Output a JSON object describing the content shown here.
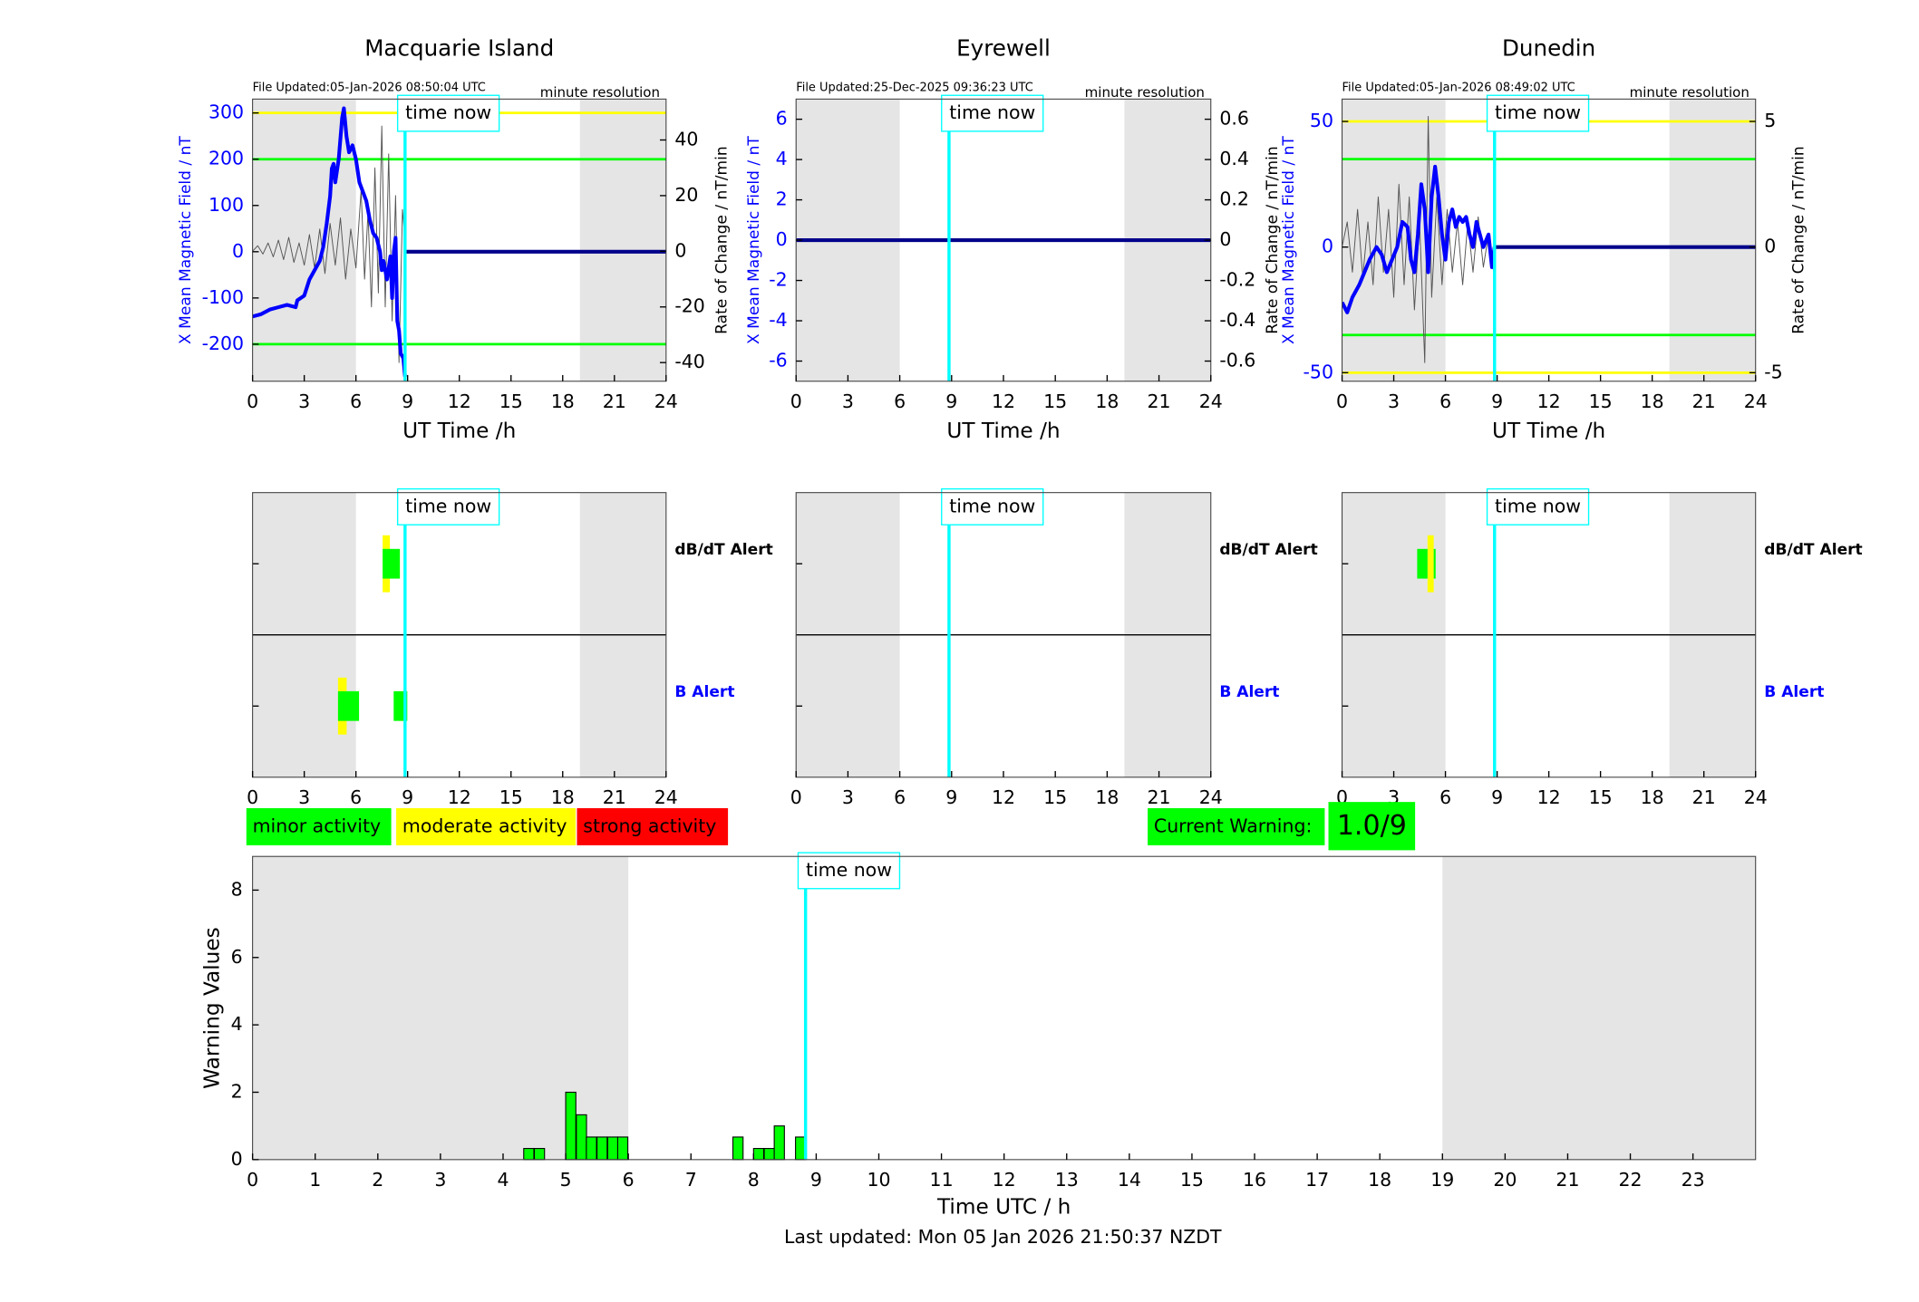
{
  "chart_data": [
    {
      "type": "line",
      "title": "Macquarie Island",
      "file_updated": "File Updated:05-Jan-2026 08:50:04 UTC",
      "resolution": "minute resolution",
      "xlabel": "UT Time /h",
      "ylabel": "X Mean Magnetic Field / nT",
      "y2label": "Rate of Change / nT/min",
      "ycolor": "#0000ff",
      "xlim": [
        0,
        24
      ],
      "xticks": [
        0,
        3,
        6,
        9,
        12,
        15,
        18,
        21,
        24
      ],
      "ylim": [
        -280,
        330
      ],
      "yticks": [
        -200,
        -100,
        0,
        100,
        200,
        300
      ],
      "y2lim": [
        -46.7,
        54.7
      ],
      "y2ticks": [
        -40,
        -20,
        0,
        20,
        40
      ],
      "night": [
        [
          0,
          6
        ],
        [
          19,
          24
        ]
      ],
      "time_now": 8.85,
      "time_now_label": "time now",
      "thresholds": [
        {
          "value": 300,
          "color": "#ffff00"
        },
        {
          "value": 200,
          "color": "#00ff00"
        },
        {
          "value": -200,
          "color": "#00ff00"
        }
      ],
      "series": [
        {
          "color": "#555555",
          "axis": "y2",
          "x": [
            0,
            0.3,
            0.6,
            0.9,
            1.2,
            1.5,
            1.8,
            2.1,
            2.4,
            2.7,
            3.0,
            3.3,
            3.6,
            3.9,
            4.2,
            4.5,
            4.8,
            5.1,
            5.4,
            5.7,
            6.0,
            6.3,
            6.5,
            6.7,
            6.9,
            7.1,
            7.3,
            7.5,
            7.7,
            7.9,
            8.1,
            8.3,
            8.5,
            8.7,
            8.9
          ],
          "values": [
            0,
            2,
            -1,
            3,
            -2,
            4,
            -3,
            5,
            -4,
            3,
            -5,
            6,
            -6,
            8,
            -8,
            10,
            -5,
            12,
            -10,
            8,
            -6,
            22,
            -10,
            14,
            -20,
            30,
            -15,
            45,
            -20,
            35,
            -25,
            20,
            -40,
            15,
            0
          ]
        },
        {
          "color": "#0000ff",
          "axis": "y",
          "x": [
            0,
            0.5,
            1,
            1.5,
            2,
            2.5,
            2.6,
            3,
            3.3,
            3.6,
            3.9,
            4.1,
            4.3,
            4.5,
            4.6,
            4.7,
            4.8,
            5,
            5.2,
            5.3,
            5.45,
            5.6,
            5.8,
            6,
            6.2,
            6.4,
            6.6,
            6.8,
            7,
            7.2,
            7.4,
            7.5,
            7.6,
            7.8,
            8,
            8.1,
            8.2,
            8.3,
            8.4,
            8.5,
            8.6,
            8.75,
            8.85
          ],
          "values": [
            -140,
            -135,
            -125,
            -120,
            -115,
            -120,
            -105,
            -95,
            -60,
            -40,
            -20,
            10,
            60,
            120,
            180,
            190,
            150,
            200,
            290,
            310,
            250,
            215,
            230,
            200,
            150,
            130,
            110,
            70,
            40,
            30,
            0,
            -40,
            -20,
            -60,
            -10,
            -100,
            0,
            30,
            -150,
            -170,
            -220,
            -230,
            -270
          ]
        },
        {
          "color": "#00008b",
          "axis": "y",
          "x": [
            8.9,
            24
          ],
          "values": [
            0,
            0
          ]
        }
      ]
    },
    {
      "type": "line",
      "title": "Eyrewell",
      "file_updated": "File Updated:25-Dec-2025 09:36:23 UTC",
      "resolution": "minute resolution",
      "xlabel": "UT Time /h",
      "ylabel": "X Mean Magnetic Field / nT",
      "ycolor": "#0000ff",
      "xlim": [
        0,
        24
      ],
      "xticks": [
        0,
        3,
        6,
        9,
        12,
        15,
        18,
        21,
        24
      ],
      "ylim": [
        -7,
        7
      ],
      "yticks": [
        -6,
        -4,
        -2,
        0,
        2,
        4,
        6
      ],
      "y2lim": [
        -0.7,
        0.7
      ],
      "y2ticks": [
        -0.6,
        -0.4,
        -0.2,
        0,
        0.2,
        0.4,
        0.6
      ],
      "night": [
        [
          0,
          6
        ],
        [
          19,
          24
        ]
      ],
      "time_now": 8.85,
      "time_now_label": "time now",
      "thresholds": [],
      "series": [
        {
          "color": "#00008b",
          "axis": "y",
          "x": [
            0,
            24
          ],
          "values": [
            0,
            0
          ]
        }
      ]
    },
    {
      "type": "line",
      "title": "Dunedin",
      "file_updated": "File Updated:05-Jan-2026 08:49:02 UTC",
      "resolution": "minute resolution",
      "xlabel": "UT Time /h",
      "ylabel": "X Mean Magnetic Field / nT",
      "y2label": "Rate of Change / nT/min",
      "y2label_left": "Rate of Change / nT/min",
      "ycolor": "#0000ff",
      "xlim": [
        0,
        24
      ],
      "xticks": [
        0,
        3,
        6,
        9,
        12,
        15,
        18,
        21,
        24
      ],
      "ylim": [
        -53.4,
        58.9
      ],
      "yticks": [
        -50,
        0,
        50
      ],
      "y2lim": [
        -5.34,
        5.89
      ],
      "y2ticks": [
        -5,
        0,
        5
      ],
      "night": [
        [
          0,
          6
        ],
        [
          19,
          24
        ]
      ],
      "time_now": 8.85,
      "time_now_label": "time now",
      "thresholds": [
        {
          "value": 50,
          "color": "#ffff00"
        },
        {
          "value": -50,
          "color": "#ffff00"
        },
        {
          "value": 35,
          "color": "#00ff00"
        },
        {
          "value": -35,
          "color": "#00ff00"
        }
      ],
      "series": [
        {
          "color": "#555555",
          "axis": "y2",
          "x": [
            0,
            0.3,
            0.6,
            0.9,
            1.2,
            1.5,
            1.8,
            2.1,
            2.4,
            2.7,
            3.0,
            3.3,
            3.6,
            3.9,
            4.2,
            4.5,
            4.8,
            5.0,
            5.2,
            5.5,
            5.8,
            6.1,
            6.4,
            6.7,
            7.0,
            7.3,
            7.6,
            7.9,
            8.2,
            8.5,
            8.8,
            8.9
          ],
          "values": [
            0,
            1,
            -1,
            1.5,
            -1.2,
            1,
            -1.5,
            2,
            -1,
            1.5,
            -2,
            2.5,
            -1.5,
            2,
            -2.5,
            1,
            -4.6,
            5.2,
            -2,
            2,
            -1.5,
            1.5,
            -1,
            1,
            -1.5,
            1,
            -1,
            1.2,
            -0.8,
            0.5,
            -1,
            0
          ]
        },
        {
          "color": "#0000ff",
          "axis": "y",
          "x": [
            0,
            0.3,
            0.6,
            1,
            1.3,
            1.6,
            2,
            2.3,
            2.6,
            2.9,
            3.2,
            3.5,
            3.8,
            4.0,
            4.2,
            4.4,
            4.6,
            4.8,
            5.0,
            5.2,
            5.4,
            5.6,
            5.8,
            6.0,
            6.2,
            6.4,
            6.6,
            6.8,
            7.0,
            7.2,
            7.4,
            7.6,
            7.8,
            8.0,
            8.2,
            8.5,
            8.7,
            8.85
          ],
          "values": [
            -22,
            -26,
            -20,
            -15,
            -10,
            -5,
            0,
            -3,
            -10,
            -5,
            0,
            10,
            8,
            -5,
            -10,
            5,
            25,
            15,
            -10,
            20,
            32,
            20,
            5,
            -5,
            10,
            15,
            8,
            12,
            10,
            12,
            5,
            0,
            10,
            5,
            0,
            5,
            -8,
            0
          ]
        },
        {
          "color": "#00008b",
          "axis": "y",
          "x": [
            8.9,
            24
          ],
          "values": [
            0,
            0
          ]
        }
      ]
    },
    {
      "type": "timeline",
      "xlim": [
        0,
        24
      ],
      "xticks": [
        0,
        3,
        6,
        9,
        12,
        15,
        18,
        21,
        24
      ],
      "night": [
        [
          0,
          6
        ],
        [
          19,
          24
        ]
      ],
      "time_now": 8.85,
      "time_now_label": "time now",
      "rows": [
        {
          "label": "dB/dT Alert",
          "color": "#000000",
          "moderate": [
            [
              7.55,
              7.97
            ]
          ],
          "minor": [
            [
              7.55,
              8.55
            ]
          ]
        },
        {
          "label": "B Alert",
          "color": "#0000ff",
          "moderate": [
            [
              4.96,
              5.46
            ]
          ],
          "minor": [
            [
              4.96,
              6.18
            ],
            [
              8.19,
              8.98
            ]
          ]
        }
      ]
    },
    {
      "type": "timeline",
      "xlim": [
        0,
        24
      ],
      "xticks": [
        0,
        3,
        6,
        9,
        12,
        15,
        18,
        21,
        24
      ],
      "night": [
        [
          0,
          6
        ],
        [
          19,
          24
        ]
      ],
      "time_now": 8.85,
      "time_now_label": "time now",
      "rows": [
        {
          "label": "dB/dT Alert",
          "color": "#000000",
          "moderate": [],
          "minor": []
        },
        {
          "label": "B Alert",
          "color": "#0000ff",
          "moderate": [],
          "minor": []
        }
      ]
    },
    {
      "type": "timeline",
      "xlim": [
        0,
        24
      ],
      "xticks": [
        0,
        3,
        6,
        9,
        12,
        15,
        18,
        21,
        24
      ],
      "night": [
        [
          0,
          6
        ],
        [
          19,
          24
        ]
      ],
      "time_now": 8.85,
      "time_now_label": "time now",
      "rows": [
        {
          "label": "dB/dT Alert",
          "color": "#000000",
          "moderate": [
            [
              4.96,
              5.32
            ]
          ],
          "minor": [
            [
              4.36,
              4.96
            ],
            [
              5.32,
              5.43
            ]
          ]
        },
        {
          "label": "B Alert",
          "color": "#0000ff",
          "moderate": [],
          "minor": []
        }
      ]
    },
    {
      "type": "bar",
      "xlabel": "Time UTC / h",
      "ylabel": "Warning Values",
      "color": "#00ff00",
      "xlim": [
        0,
        24
      ],
      "xticks": [
        0,
        1,
        2,
        3,
        4,
        5,
        6,
        7,
        8,
        9,
        10,
        11,
        12,
        13,
        14,
        15,
        16,
        17,
        18,
        19,
        20,
        21,
        22,
        23
      ],
      "ylim": [
        0,
        9
      ],
      "yticks": [
        0,
        2,
        4,
        6,
        8
      ],
      "night": [
        [
          0,
          6
        ],
        [
          19,
          24
        ]
      ],
      "time_now": 8.83,
      "time_now_label": "time now",
      "x": [
        4.33,
        4.5,
        5,
        5.17,
        5.33,
        5.5,
        5.67,
        5.83,
        7.67,
        8,
        8.17,
        8.33,
        8.67
      ],
      "values": [
        0.33,
        0.33,
        2,
        1.33,
        0.67,
        0.67,
        0.67,
        0.67,
        0.67,
        0.33,
        0.33,
        1,
        0.67
      ]
    }
  ],
  "legend": [
    {
      "label": "minor activity",
      "color": "#00ff00"
    },
    {
      "label": "moderate activity",
      "color": "#ffff00"
    },
    {
      "label": "strong activity",
      "color": "#ff0000"
    }
  ],
  "current_warning": {
    "label": "Current Warning:",
    "value": "1.0/9",
    "color": "#00ff00"
  },
  "footer": "Last updated: Mon 05 Jan 2026 21:50:37 NZDT"
}
